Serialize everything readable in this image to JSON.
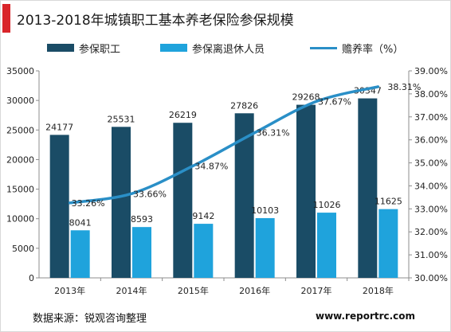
{
  "chart_data": {
    "type": "bar",
    "title": "2013-2018年城镇职工基本养老保险参保规模",
    "categories": [
      "2013年",
      "2014年",
      "2015年",
      "2016年",
      "2017年",
      "2018年"
    ],
    "series": [
      {
        "name": "参保职工",
        "type": "bar",
        "axis": "left",
        "color": "#1a4c66",
        "values": [
          24177,
          25531,
          26219,
          27826,
          29268,
          30347
        ]
      },
      {
        "name": "参保离退休人员",
        "type": "bar",
        "axis": "left",
        "color": "#1fa3dc",
        "values": [
          8041,
          8593,
          9142,
          10103,
          11026,
          11625
        ]
      },
      {
        "name": "赡养率（%）",
        "type": "line",
        "axis": "right",
        "color": "#2a8fc7",
        "values": [
          33.26,
          33.66,
          34.87,
          36.31,
          37.67,
          38.31
        ],
        "labels": [
          "33.26%",
          "33.66%",
          "34.87%",
          "36.31%",
          "37.67%",
          "38.31%"
        ]
      }
    ],
    "y_left": {
      "min": 0,
      "max": 35000,
      "step": 5000,
      "ticks": [
        "0",
        "5000",
        "10000",
        "15000",
        "20000",
        "25000",
        "30000",
        "35000"
      ]
    },
    "y_right": {
      "min": 30,
      "max": 39,
      "step": 1,
      "ticks": [
        "30.00%",
        "31.00%",
        "32.00%",
        "33.00%",
        "34.00%",
        "35.00%",
        "36.00%",
        "37.00%",
        "38.00%",
        "39.00%"
      ]
    },
    "legend_position": "top-left",
    "grid": false
  },
  "footer": {
    "source": "数据来源：锐观咨询整理",
    "website": "www.reportrc.com"
  }
}
